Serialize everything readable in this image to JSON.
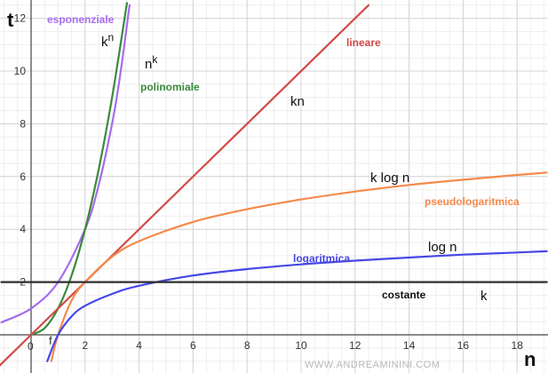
{
  "chart_data": {
    "type": "line",
    "xlabel": "n",
    "ylabel": "t",
    "xlim": [
      -1.1,
      19.1
    ],
    "ylim": [
      -1.0,
      12.5
    ],
    "x_ticks": [
      2,
      4,
      6,
      8,
      10,
      12,
      14,
      16,
      18
    ],
    "y_ticks": [
      2,
      4,
      6,
      8,
      10,
      12
    ],
    "origin_label": "0",
    "point_label": "f",
    "grid": true,
    "series": [
      {
        "key": "esponenziale",
        "name": "esponenziale",
        "expr": "kn",
        "expr_sup": "n",
        "color": "#a66cf0",
        "fn": "1.18^x... approx k^n with k=2",
        "points": [
          [
            -1.1,
            0.47
          ],
          [
            0,
            1
          ],
          [
            1,
            2
          ],
          [
            2,
            4
          ],
          [
            2.5,
            5.66
          ],
          [
            3,
            8
          ],
          [
            3.3,
            9.85
          ],
          [
            3.6,
            12.13
          ],
          [
            3.65,
            12.5
          ]
        ]
      },
      {
        "key": "polinomiale",
        "name": "polinomiale",
        "expr": "nk",
        "expr_sup": "k",
        "color": "#3a8a3a",
        "points": [
          [
            0,
            0
          ],
          [
            0.5,
            0.25
          ],
          [
            1,
            1
          ],
          [
            1.5,
            2.25
          ],
          [
            2,
            4
          ],
          [
            2.5,
            6.25
          ],
          [
            3,
            9
          ],
          [
            3.5,
            12.25
          ],
          [
            3.54,
            12.5
          ]
        ]
      },
      {
        "key": "lineare",
        "name": "lineare",
        "expr": "kn",
        "expr_sup": "",
        "color": "#d24a45",
        "points": [
          [
            -1.1,
            -1.1
          ],
          [
            0,
            0
          ],
          [
            12.5,
            12.5
          ]
        ]
      },
      {
        "key": "pseudologaritmica",
        "name": "pseudologaritmica",
        "expr": "k log n",
        "expr_sup": "",
        "color": "#f5894a",
        "points": [
          [
            0.75,
            -1
          ],
          [
            1,
            0
          ],
          [
            1.5,
            1.3
          ],
          [
            2,
            2
          ],
          [
            3,
            2.96
          ],
          [
            4,
            3.55
          ],
          [
            6,
            4.28
          ],
          [
            8,
            4.76
          ],
          [
            10,
            5.13
          ],
          [
            12,
            5.43
          ],
          [
            14,
            5.68
          ],
          [
            16,
            5.88
          ],
          [
            18,
            6.06
          ],
          [
            19.1,
            6.15
          ]
        ]
      },
      {
        "key": "logaritmica",
        "name": "logaritmica",
        "expr": "log n",
        "expr_sup": "",
        "color": "#4747e8",
        "points": [
          [
            0.6,
            -1
          ],
          [
            1,
            0
          ],
          [
            1.5,
            0.7
          ],
          [
            2,
            1.1
          ],
          [
            3,
            1.55
          ],
          [
            4,
            1.86
          ],
          [
            6,
            2.25
          ],
          [
            8,
            2.49
          ],
          [
            10,
            2.67
          ],
          [
            12,
            2.81
          ],
          [
            14,
            2.93
          ],
          [
            16,
            3.04
          ],
          [
            18,
            3.12
          ],
          [
            19.1,
            3.17
          ]
        ]
      },
      {
        "key": "costante",
        "name": "costante",
        "expr": "k",
        "expr_sup": "",
        "color": "#2e2e2e",
        "points": [
          [
            -1.1,
            2
          ],
          [
            19.1,
            2
          ]
        ]
      }
    ]
  },
  "watermark": "WWW.ANDREAMININI.COM"
}
